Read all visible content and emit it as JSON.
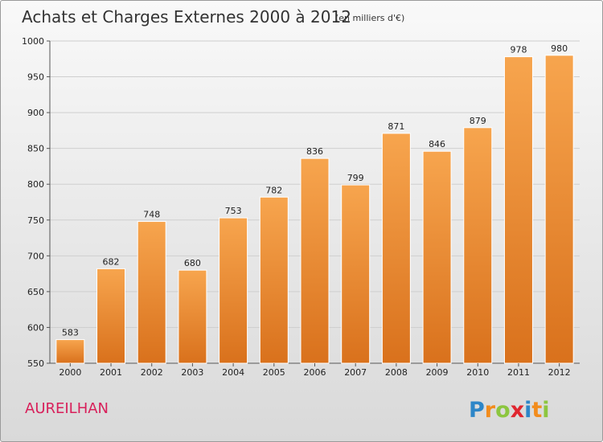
{
  "chart_data": {
    "type": "bar",
    "title": "Achats et Charges Externes 2000 à 2012",
    "subtitle": "(en milliers d'€)",
    "xlabel": "",
    "ylabel": "",
    "categories": [
      "2000",
      "2001",
      "2002",
      "2003",
      "2004",
      "2005",
      "2006",
      "2007",
      "2008",
      "2009",
      "2010",
      "2011",
      "2012"
    ],
    "values": [
      583,
      682,
      748,
      680,
      753,
      782,
      836,
      799,
      871,
      846,
      879,
      978,
      980
    ],
    "value_labels": [
      "583",
      "682",
      "748",
      "680",
      "753",
      "782",
      "836",
      "799",
      "871",
      "846",
      "879",
      "978",
      "980"
    ],
    "ylim": [
      550,
      1000
    ],
    "yticks": [
      550,
      600,
      650,
      700,
      750,
      800,
      850,
      900,
      950,
      1000
    ],
    "ytick_labels": [
      "550",
      "600",
      "650",
      "700",
      "750",
      "800",
      "850",
      "900",
      "950",
      "1000"
    ],
    "grid": true,
    "bar_color_top": "#f7a54e",
    "bar_color_bottom": "#d9711c"
  },
  "footer": {
    "commune": "AUREILHAN",
    "brand_letters": [
      "P",
      "r",
      "o",
      "x",
      "i",
      "t",
      "i"
    ],
    "brand_colors": [
      "#2d86c8",
      "#f28c1c",
      "#8cc63f",
      "#e0262f",
      "#2d86c8",
      "#f28c1c",
      "#8cc63f"
    ]
  }
}
